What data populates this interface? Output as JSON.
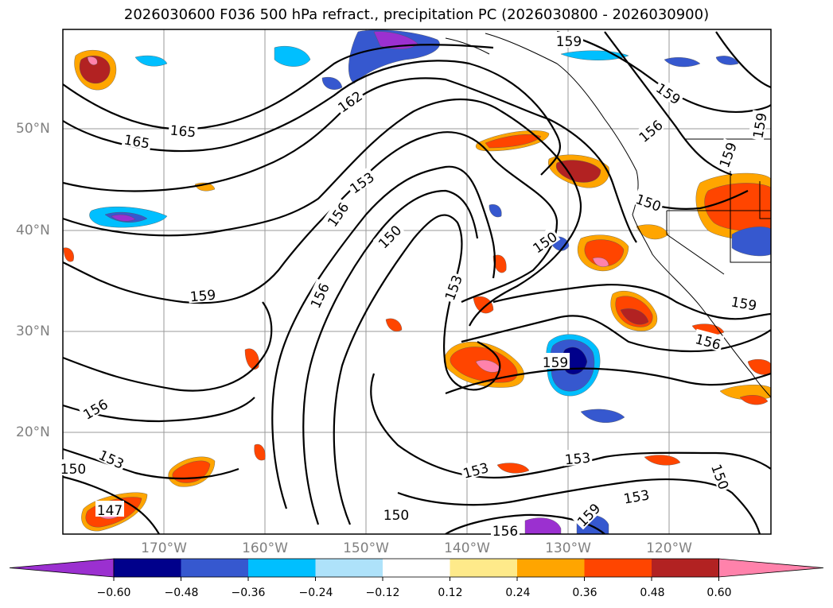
{
  "title": "2026030600 F036 500 hPa refract., precipitation PC (2026030800 - 2026030900)",
  "latitudes": [
    {
      "label": "50°N",
      "value": 50
    },
    {
      "label": "40°N",
      "value": 40
    },
    {
      "label": "30°N",
      "value": 30
    },
    {
      "label": "20°N",
      "value": 20
    }
  ],
  "longitudes": [
    {
      "label": "170°W",
      "value": -170
    },
    {
      "label": "160°W",
      "value": -160
    },
    {
      "label": "150°W",
      "value": -150
    },
    {
      "label": "140°W",
      "value": -140
    },
    {
      "label": "130°W",
      "value": -130
    },
    {
      "label": "120°W",
      "value": -120
    }
  ],
  "contour_labels": [
    "159",
    "165",
    "165",
    "162",
    "159",
    "159",
    "159",
    "153",
    "156",
    "150",
    "150",
    "153",
    "159",
    "156",
    "150",
    "159",
    "156",
    "156",
    "153",
    "150",
    "147",
    "153",
    "150",
    "153",
    "153",
    "150",
    "159",
    "156",
    "156",
    "159"
  ],
  "colorbar": {
    "ticks": [
      "−0.60",
      "−0.48",
      "−0.36",
      "−0.24",
      "−0.12",
      "0.12",
      "0.24",
      "0.36",
      "0.48",
      "0.60"
    ],
    "colors": [
      "#9b30d0",
      "#00008b",
      "#3658cf",
      "#00bfff",
      "#aee2fa",
      "#ffffff",
      "#feea8a",
      "#ffa500",
      "#ff4500",
      "#b22222",
      "#ff82ab"
    ]
  }
}
